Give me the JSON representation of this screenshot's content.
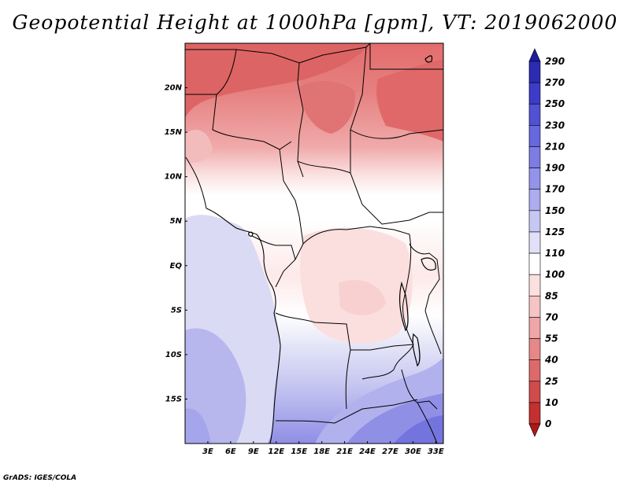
{
  "title": "Geopotential Height at 1000hPa [gpm], VT: 2019062000",
  "credit": "GrADS: IGES/COLA",
  "map": {
    "lon_range": [
      0,
      34
    ],
    "lat_range": [
      -20,
      25
    ],
    "lat_labels": [
      {
        "text": "20N",
        "lat": 20
      },
      {
        "text": "15N",
        "lat": 15
      },
      {
        "text": "10N",
        "lat": 10
      },
      {
        "text": "5N",
        "lat": 5
      },
      {
        "text": "EQ",
        "lat": 0
      },
      {
        "text": "5S",
        "lat": -5
      },
      {
        "text": "10S",
        "lat": -10
      },
      {
        "text": "15S",
        "lat": -15
      }
    ],
    "lon_labels": [
      {
        "text": "3E",
        "lon": 3
      },
      {
        "text": "6E",
        "lon": 6
      },
      {
        "text": "9E",
        "lon": 9
      },
      {
        "text": "12E",
        "lon": 12
      },
      {
        "text": "15E",
        "lon": 15
      },
      {
        "text": "18E",
        "lon": 18
      },
      {
        "text": "21E",
        "lon": 21
      },
      {
        "text": "24E",
        "lon": 24
      },
      {
        "text": "27E",
        "lon": 27
      },
      {
        "text": "30E",
        "lon": 30
      },
      {
        "text": "33E",
        "lon": 33
      }
    ]
  },
  "colorbar": {
    "levels": [
      "290",
      "270",
      "250",
      "230",
      "210",
      "190",
      "170",
      "150",
      "125",
      "110",
      "100",
      "85",
      "70",
      "55",
      "40",
      "25",
      "10",
      "0"
    ],
    "colors": [
      "#1d1c9f",
      "#2c2bb4",
      "#3c3cc8",
      "#5151d4",
      "#6767de",
      "#7c7ce4",
      "#9393ea",
      "#acacef",
      "#c7c7f3",
      "#e0e0f8",
      "#ffffff",
      "#fbe0e0",
      "#f5c4c4",
      "#efa6a6",
      "#e68888",
      "#dc6a6a",
      "#d04b4b",
      "#c23030",
      "#b01818"
    ]
  }
}
